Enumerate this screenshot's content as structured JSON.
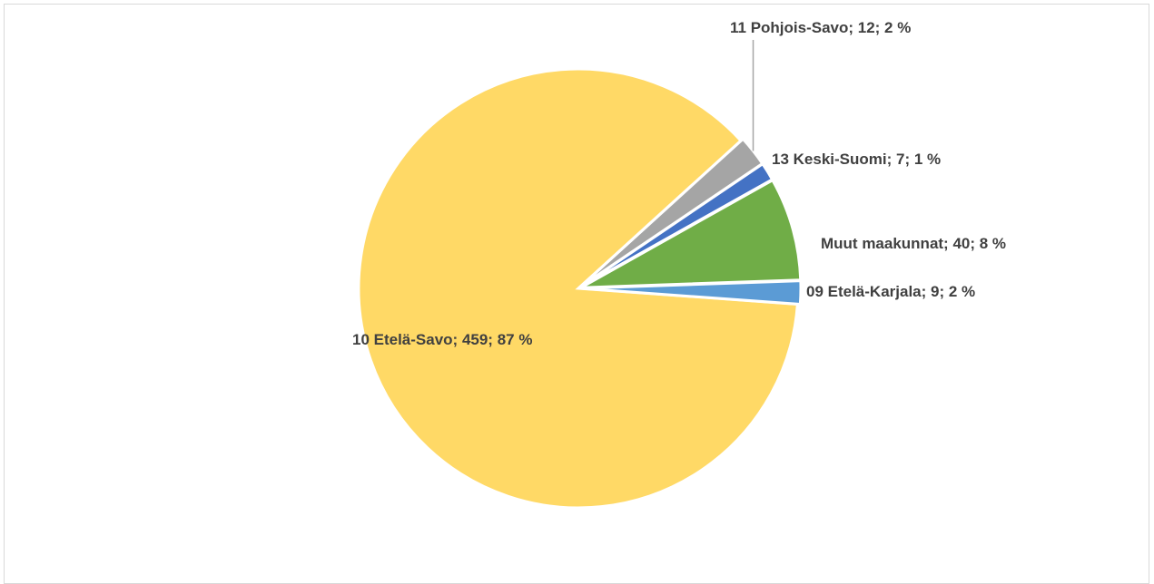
{
  "chart_data": {
    "type": "pie",
    "title": "",
    "slices": [
      {
        "name": "09 Etelä-Karjala",
        "value": 9,
        "percent": "2 %",
        "label": "09 Etelä-Karjala; 9; 2 %",
        "color": "#5B9BD5"
      },
      {
        "name": "10 Etelä-Savo",
        "value": 459,
        "percent": "87 %",
        "label": "10 Etelä-Savo; 459; 87 %",
        "color": "#FFD966"
      },
      {
        "name": "11 Pohjois-Savo",
        "value": 12,
        "percent": "2 %",
        "label": "11 Pohjois-Savo; 12; 2 %",
        "color": "#A5A5A5"
      },
      {
        "name": "13 Keski-Suomi",
        "value": 7,
        "percent": "1 %",
        "label": "13 Keski-Suomi; 7; 1 %",
        "color": "#4472C4"
      },
      {
        "name": "Muut maakunnat",
        "value": 40,
        "percent": "8 %",
        "label": "Muut maakunnat; 40; 8 %",
        "color": "#70AD47"
      }
    ]
  }
}
